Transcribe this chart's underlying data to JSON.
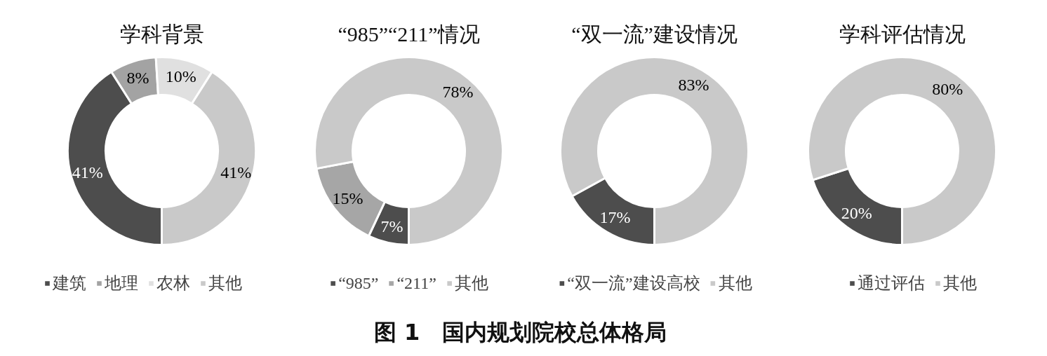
{
  "chart_data": [
    {
      "type": "donut",
      "title": "学科背景",
      "categories": [
        "建筑",
        "地理",
        "农林",
        "其他"
      ],
      "values": [
        41,
        8,
        10,
        41
      ],
      "colors": [
        "#4d4d4d",
        "#a3a3a3",
        "#e0e0e0",
        "#c9c9c9"
      ],
      "value_labels": [
        "41%",
        "8%",
        "10%",
        "41%"
      ],
      "legend": "bottom",
      "annotations": [
        "图 1　国内规划院校总体格局"
      ]
    },
    {
      "type": "donut",
      "title": "“985”“211”情况",
      "categories": [
        "“985”",
        "“211”",
        "其他"
      ],
      "values": [
        7,
        15,
        78
      ],
      "colors": [
        "#4d4d4d",
        "#a6a6a6",
        "#c9c9c9"
      ],
      "value_labels": [
        "7%",
        "15%",
        "78%"
      ],
      "legend": "bottom"
    },
    {
      "type": "donut",
      "title": "“双一流”建设情况",
      "categories": [
        "“双一流”建设高校",
        "其他"
      ],
      "values": [
        17,
        83
      ],
      "colors": [
        "#4d4d4d",
        "#c9c9c9"
      ],
      "value_labels": [
        "17%",
        "83%"
      ],
      "legend": "bottom"
    },
    {
      "type": "donut",
      "title": "学科评估情况",
      "categories": [
        "通过评估",
        "其他"
      ],
      "values": [
        20,
        80
      ],
      "colors": [
        "#4d4d4d",
        "#c9c9c9"
      ],
      "value_labels": [
        "20%",
        "80%"
      ],
      "legend": "bottom"
    }
  ]
}
